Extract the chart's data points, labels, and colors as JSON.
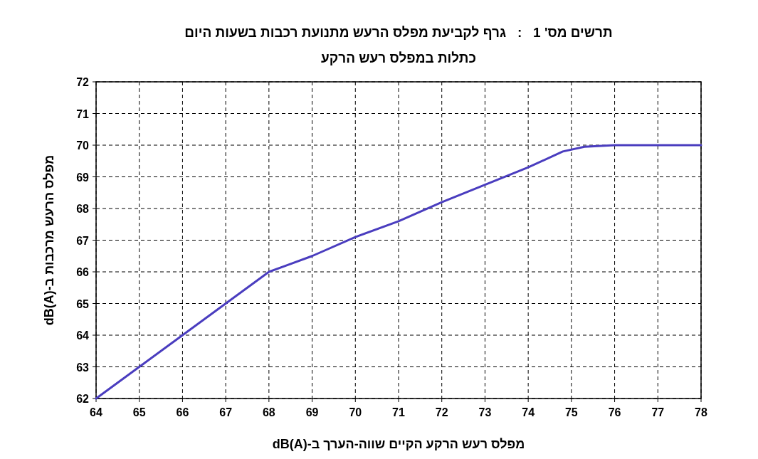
{
  "chart_data": {
    "type": "line",
    "title": "תרשים מס' 1   :   גרף לקביעת מפלס הרעש מתנועת רכבות בשעות היום",
    "subtitle": "כתלות במפלס רעש הרקע",
    "xlabel": "מפלס רעש הרקע הקיים שווה-הערך ב-dB(A)",
    "ylabel": "מפלס הרעש מרכבות ב-dB(A)",
    "x": [
      64,
      65,
      66,
      67,
      68,
      68.4,
      69,
      70,
      71,
      72,
      73,
      74,
      74.8,
      75.3,
      76,
      78
    ],
    "series": [
      {
        "color": "#4a3dbf",
        "values": [
          62,
          63,
          64,
          65,
          66,
          66.2,
          66.5,
          67.1,
          67.6,
          68.2,
          68.75,
          69.3,
          69.8,
          69.95,
          70,
          70
        ]
      }
    ],
    "xlim": [
      64,
      78
    ],
    "xticks": [
      64,
      65,
      66,
      67,
      68,
      69,
      70,
      71,
      72,
      73,
      74,
      75,
      76,
      77,
      78
    ],
    "ylim": [
      62,
      72
    ],
    "yticks": [
      62,
      63,
      64,
      65,
      66,
      67,
      68,
      69,
      70,
      71,
      72
    ],
    "grid": true,
    "line_style": "solid",
    "marker": "none"
  }
}
